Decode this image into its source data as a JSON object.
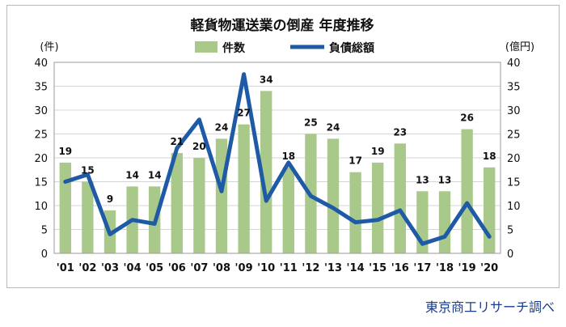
{
  "chart_data": {
    "type": "bar+line",
    "title": "軽貨物運送業の倒産 年度推移",
    "categories": [
      "'01",
      "'02",
      "'03",
      "'04",
      "'05",
      "'06",
      "'07",
      "'08",
      "'09",
      "'10",
      "'11",
      "'12",
      "'13",
      "'14",
      "'15",
      "'16",
      "'17",
      "'18",
      "'19",
      "'20"
    ],
    "series": [
      {
        "name": "件数",
        "type": "bar",
        "axis": "left",
        "color": "#a9c98a",
        "values": [
          19,
          15,
          9,
          14,
          14,
          21,
          20,
          24,
          27,
          34,
          18,
          25,
          24,
          17,
          19,
          23,
          13,
          13,
          26,
          18
        ]
      },
      {
        "name": "負債総額",
        "type": "line",
        "axis": "right",
        "color": "#1f5aa6",
        "values": [
          15,
          16.5,
          4,
          7,
          6.2,
          22,
          28,
          13,
          37.5,
          11,
          19,
          12,
          9.5,
          6.5,
          7,
          9,
          2,
          3.5,
          10.5,
          3.5
        ]
      }
    ],
    "y_left": {
      "label": "(件)",
      "min": 0,
      "max": 40,
      "ticks": [
        0,
        5,
        10,
        15,
        20,
        25,
        30,
        35,
        40
      ]
    },
    "y_right": {
      "label": "(億円)",
      "min": 0,
      "max": 40,
      "ticks": [
        0,
        5,
        10,
        15,
        20,
        25,
        30,
        35,
        40
      ]
    },
    "grid": true,
    "legend": "top-center"
  },
  "credit": "東京商工リサーチ調べ"
}
